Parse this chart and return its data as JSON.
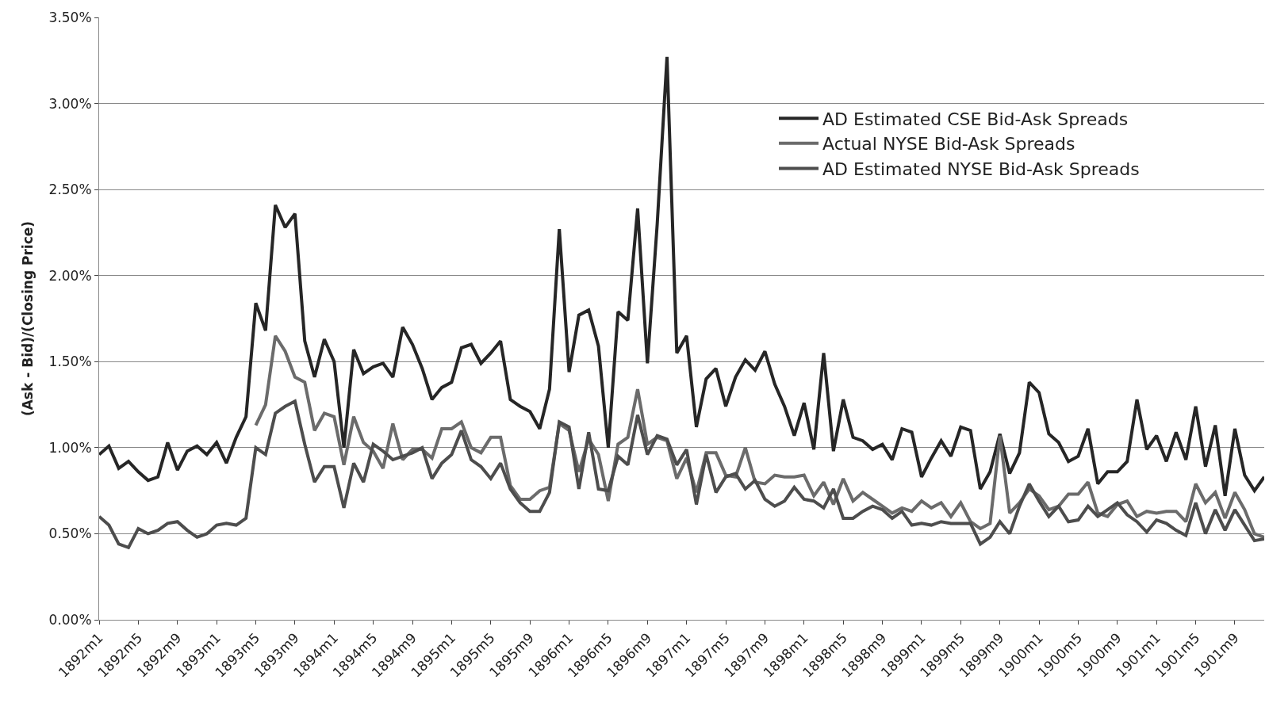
{
  "chart_data": {
    "type": "line",
    "ylabel": "(Ask - Bid)/(Closing Price)",
    "categories": [
      "1892m1",
      null,
      null,
      null,
      "1892m5",
      null,
      null,
      null,
      "1892m9",
      null,
      null,
      null,
      "1893m1",
      null,
      null,
      null,
      "1893m5",
      null,
      null,
      null,
      "1893m9",
      null,
      null,
      null,
      "1894m1",
      null,
      null,
      null,
      "1894m5",
      null,
      null,
      null,
      "1894m9",
      null,
      null,
      null,
      "1895m1",
      null,
      null,
      null,
      "1895m5",
      null,
      null,
      null,
      "1895m9",
      null,
      null,
      null,
      "1896m1",
      null,
      null,
      null,
      "1896m5",
      null,
      null,
      null,
      "1896m9",
      null,
      null,
      null,
      "1897m1",
      null,
      null,
      null,
      "1897m5",
      null,
      null,
      null,
      "1897m9",
      null,
      null,
      null,
      "1898m1",
      null,
      null,
      null,
      "1898m5",
      null,
      null,
      null,
      "1898m9",
      null,
      null,
      null,
      "1899m1",
      null,
      null,
      null,
      "1899m5",
      null,
      null,
      null,
      "1899m9",
      null,
      null,
      null,
      "1900m1",
      null,
      null,
      null,
      "1900m5",
      null,
      null,
      null,
      "1900m9",
      null,
      null,
      null,
      "1901m1",
      null,
      null,
      null,
      "1901m5",
      null,
      null,
      null,
      "1901m9",
      null,
      null,
      null
    ],
    "series": [
      {
        "name": "AD Estimated CSE Bid-Ask Spreads",
        "color": "#262626",
        "values": [
          0.96,
          1.01,
          0.88,
          0.92,
          0.86,
          0.81,
          0.83,
          1.03,
          0.87,
          0.98,
          1.01,
          0.96,
          1.03,
          0.91,
          1.06,
          1.18,
          1.84,
          1.68,
          2.41,
          2.28,
          2.36,
          1.62,
          1.41,
          1.63,
          1.5,
          1.0,
          1.57,
          1.43,
          1.47,
          1.49,
          1.41,
          1.7,
          1.6,
          1.46,
          1.28,
          1.35,
          1.38,
          1.58,
          1.6,
          1.49,
          1.55,
          1.62,
          1.28,
          1.24,
          1.21,
          1.11,
          1.34,
          2.27,
          1.44,
          1.77,
          1.8,
          1.59,
          1.0,
          1.79,
          1.74,
          2.39,
          1.49,
          2.3,
          3.27,
          1.55,
          1.65,
          1.12,
          1.4,
          1.46,
          1.24,
          1.41,
          1.51,
          1.45,
          1.56,
          1.37,
          1.24,
          1.07,
          1.26,
          0.99,
          1.55,
          0.98,
          1.28,
          1.06,
          1.04,
          0.99,
          1.02,
          0.93,
          1.11,
          1.09,
          0.83,
          0.94,
          1.04,
          0.95,
          1.12,
          1.1,
          0.76,
          0.86,
          1.08,
          0.85,
          0.97,
          1.38,
          1.32,
          1.08,
          1.03,
          0.92,
          0.95,
          1.11,
          0.79,
          0.86,
          0.86,
          0.92,
          1.28,
          0.99,
          1.07,
          0.92,
          1.09,
          0.93,
          1.24,
          0.89,
          1.13,
          0.72,
          1.11,
          0.84,
          0.75,
          0.83
        ]
      },
      {
        "name": "Actual NYSE Bid-Ask Spreads",
        "color": "#6b6b6b",
        "values": [
          null,
          null,
          null,
          null,
          null,
          null,
          null,
          null,
          null,
          null,
          null,
          null,
          null,
          null,
          null,
          null,
          1.13,
          1.25,
          1.65,
          1.56,
          1.41,
          1.38,
          1.1,
          1.2,
          1.18,
          0.9,
          1.18,
          1.03,
          0.98,
          0.88,
          1.14,
          0.93,
          0.99,
          0.99,
          0.94,
          1.11,
          1.11,
          1.15,
          1.0,
          0.97,
          1.06,
          1.06,
          0.78,
          0.7,
          0.7,
          0.75,
          0.77,
          1.14,
          1.1,
          0.86,
          1.05,
          0.96,
          0.69,
          1.02,
          1.06,
          1.34,
          1.02,
          1.06,
          1.04,
          0.82,
          0.94,
          0.74,
          0.97,
          0.97,
          0.84,
          0.83,
          1.0,
          0.8,
          0.79,
          0.84,
          0.83,
          0.83,
          0.84,
          0.72,
          0.8,
          0.67,
          0.82,
          0.69,
          0.74,
          0.7,
          0.66,
          0.62,
          0.65,
          0.63,
          0.69,
          0.65,
          0.68,
          0.6,
          0.68,
          0.57,
          0.53,
          0.56,
          1.07,
          0.62,
          0.68,
          0.76,
          0.72,
          0.64,
          0.66,
          0.73,
          0.73,
          0.8,
          0.62,
          0.6,
          0.67,
          0.69,
          0.6,
          0.63,
          0.62,
          0.63,
          0.63,
          0.57,
          0.79,
          0.68,
          0.74,
          0.59,
          0.74,
          0.64,
          0.5,
          0.48
        ]
      },
      {
        "name": "AD Estimated NYSE Bid-Ask Spreads",
        "color": "#4d4d4d",
        "values": [
          0.6,
          0.55,
          0.44,
          0.42,
          0.53,
          0.5,
          0.52,
          0.56,
          0.57,
          0.52,
          0.48,
          0.5,
          0.55,
          0.56,
          0.55,
          0.59,
          1.0,
          0.96,
          1.2,
          1.24,
          1.27,
          1.02,
          0.8,
          0.89,
          0.89,
          0.65,
          0.91,
          0.8,
          1.02,
          0.98,
          0.93,
          0.95,
          0.97,
          1.0,
          0.82,
          0.91,
          0.96,
          1.1,
          0.93,
          0.89,
          0.82,
          0.91,
          0.76,
          0.68,
          0.63,
          0.63,
          0.74,
          1.15,
          1.12,
          0.76,
          1.09,
          0.76,
          0.75,
          0.95,
          0.9,
          1.19,
          0.96,
          1.07,
          1.05,
          0.9,
          0.99,
          0.67,
          0.96,
          0.74,
          0.83,
          0.85,
          0.76,
          0.81,
          0.7,
          0.66,
          0.69,
          0.77,
          0.7,
          0.69,
          0.65,
          0.76,
          0.59,
          0.59,
          0.63,
          0.66,
          0.64,
          0.59,
          0.63,
          0.55,
          0.56,
          0.55,
          0.57,
          0.56,
          0.56,
          0.56,
          0.44,
          0.48,
          0.57,
          0.5,
          0.66,
          0.79,
          0.69,
          0.6,
          0.66,
          0.57,
          0.58,
          0.66,
          0.6,
          0.64,
          0.68,
          0.61,
          0.57,
          0.51,
          0.58,
          0.56,
          0.52,
          0.49,
          0.68,
          0.5,
          0.64,
          0.52,
          0.64,
          0.55,
          0.46,
          0.47
        ]
      }
    ],
    "ylim": [
      0,
      3.5
    ],
    "yticks": [
      {
        "value": 0,
        "label": "0.00%"
      },
      {
        "value": 0.5,
        "label": "0.50%"
      },
      {
        "value": 1,
        "label": "1.00%"
      },
      {
        "value": 1.5,
        "label": "1.50%"
      },
      {
        "value": 2,
        "label": "2.00%"
      },
      {
        "value": 2.5,
        "label": "2.50%"
      },
      {
        "value": 3,
        "label": "3.00%"
      },
      {
        "value": 3.5,
        "label": "3.50%"
      }
    ],
    "grid": "y",
    "legend": "top right",
    "marker": "none",
    "line_style": "solid"
  }
}
